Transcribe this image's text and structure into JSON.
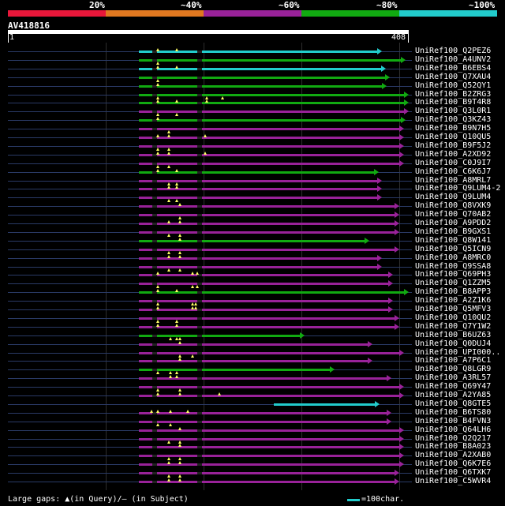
{
  "scale": {
    "labels": [
      "20%",
      "~40%",
      "~60%",
      "~80%",
      "~100%"
    ],
    "colors": [
      "#e8173a",
      "#e07820",
      "#992299",
      "#11aa11",
      "#22cccc"
    ]
  },
  "query": {
    "name": "AV418816",
    "start": "1",
    "end": "408"
  },
  "hits": [
    {
      "label": "UniRef100_Q2PEZ6",
      "color": "#22cccc"
    },
    {
      "label": "UniRef100_A4UNV2",
      "color": "#11aa11"
    },
    {
      "label": "UniRef100_B6EBS4",
      "color": "#22cccc"
    },
    {
      "label": "UniRef100_Q7XAU4",
      "color": "#11aa11"
    },
    {
      "label": "UniRef100_Q52QY1",
      "color": "#11aa11"
    },
    {
      "label": "UniRef100_B2ZRG3",
      "color": "#11aa11"
    },
    {
      "label": "UniRef100_B9T4R8",
      "color": "#11aa11"
    },
    {
      "label": "UniRef100_Q3L0R1",
      "color": "#992299"
    },
    {
      "label": "UniRef100_Q3KZ43",
      "color": "#11aa11"
    },
    {
      "label": "UniRef100_B9N7H5",
      "color": "#992299"
    },
    {
      "label": "UniRef100_Q10QU5",
      "color": "#992299"
    },
    {
      "label": "UniRef100_B9F5J2",
      "color": "#992299"
    },
    {
      "label": "UniRef100_A2XD92",
      "color": "#992299"
    },
    {
      "label": "UniRef100_C0J9I7",
      "color": "#992299"
    },
    {
      "label": "UniRef100_C6K6J7",
      "color": "#11aa11"
    },
    {
      "label": "UniRef100_A8MRL7",
      "color": "#992299"
    },
    {
      "label": "UniRef100_Q9LUM4-2",
      "color": "#992299"
    },
    {
      "label": "UniRef100_Q9LUM4",
      "color": "#992299"
    },
    {
      "label": "UniRef100_Q8VXK9",
      "color": "#992299"
    },
    {
      "label": "UniRef100_Q70AB2",
      "color": "#992299"
    },
    {
      "label": "UniRef100_A9PDD2",
      "color": "#992299"
    },
    {
      "label": "UniRef100_B9GXS1",
      "color": "#992299"
    },
    {
      "label": "UniRef100_Q8W141",
      "color": "#11aa11"
    },
    {
      "label": "UniRef100_Q5ICN9",
      "color": "#992299"
    },
    {
      "label": "UniRef100_A8MRC0",
      "color": "#992299"
    },
    {
      "label": "UniRef100_Q9SSA8",
      "color": "#992299"
    },
    {
      "label": "UniRef100_Q69PH3",
      "color": "#992299"
    },
    {
      "label": "UniRef100_Q1ZZM5",
      "color": "#992299"
    },
    {
      "label": "UniRef100_B8APP3",
      "color": "#11aa11"
    },
    {
      "label": "UniRef100_A2Z1K6",
      "color": "#992299"
    },
    {
      "label": "UniRef100_Q5MFV3",
      "color": "#992299"
    },
    {
      "label": "UniRef100_Q10QU2",
      "color": "#992299"
    },
    {
      "label": "UniRef100_Q7Y1W2",
      "color": "#992299"
    },
    {
      "label": "UniRef100_B6UZ63",
      "color": "#11aa11"
    },
    {
      "label": "UniRef100_Q0DUJ4",
      "color": "#992299"
    },
    {
      "label": "UniRef100_UPI000..",
      "color": "#992299"
    },
    {
      "label": "UniRef100_A7P6C1",
      "color": "#992299"
    },
    {
      "label": "UniRef100_Q8LGR9",
      "color": "#11aa11"
    },
    {
      "label": "UniRef100_A3RL57",
      "color": "#992299"
    },
    {
      "label": "UniRef100_Q69Y47",
      "color": "#992299"
    },
    {
      "label": "UniRef100_A2YA85",
      "color": "#992299"
    },
    {
      "label": "UniRef100_Q8GTE5",
      "color": "#22cccc"
    },
    {
      "label": "UniRef100_B6TS80",
      "color": "#992299"
    },
    {
      "label": "UniRef100_B4FVN3",
      "color": "#992299"
    },
    {
      "label": "UniRef100_Q64LH6",
      "color": "#992299"
    },
    {
      "label": "UniRef100_Q2Q217",
      "color": "#992299"
    },
    {
      "label": "UniRef100_B8A023",
      "color": "#992299"
    },
    {
      "label": "UniRef100_A2XAB0",
      "color": "#992299"
    },
    {
      "label": "UniRef100_Q6K7E6",
      "color": "#992299"
    },
    {
      "label": "UniRef100_Q6TXK7",
      "color": "#992299"
    },
    {
      "label": "UniRef100_C5WVR4",
      "color": "#992299"
    }
  ],
  "footer": {
    "gaps_text": "Large gaps: ▲(in Query)/– (in Subject)",
    "legend_text": "=100char."
  }
}
